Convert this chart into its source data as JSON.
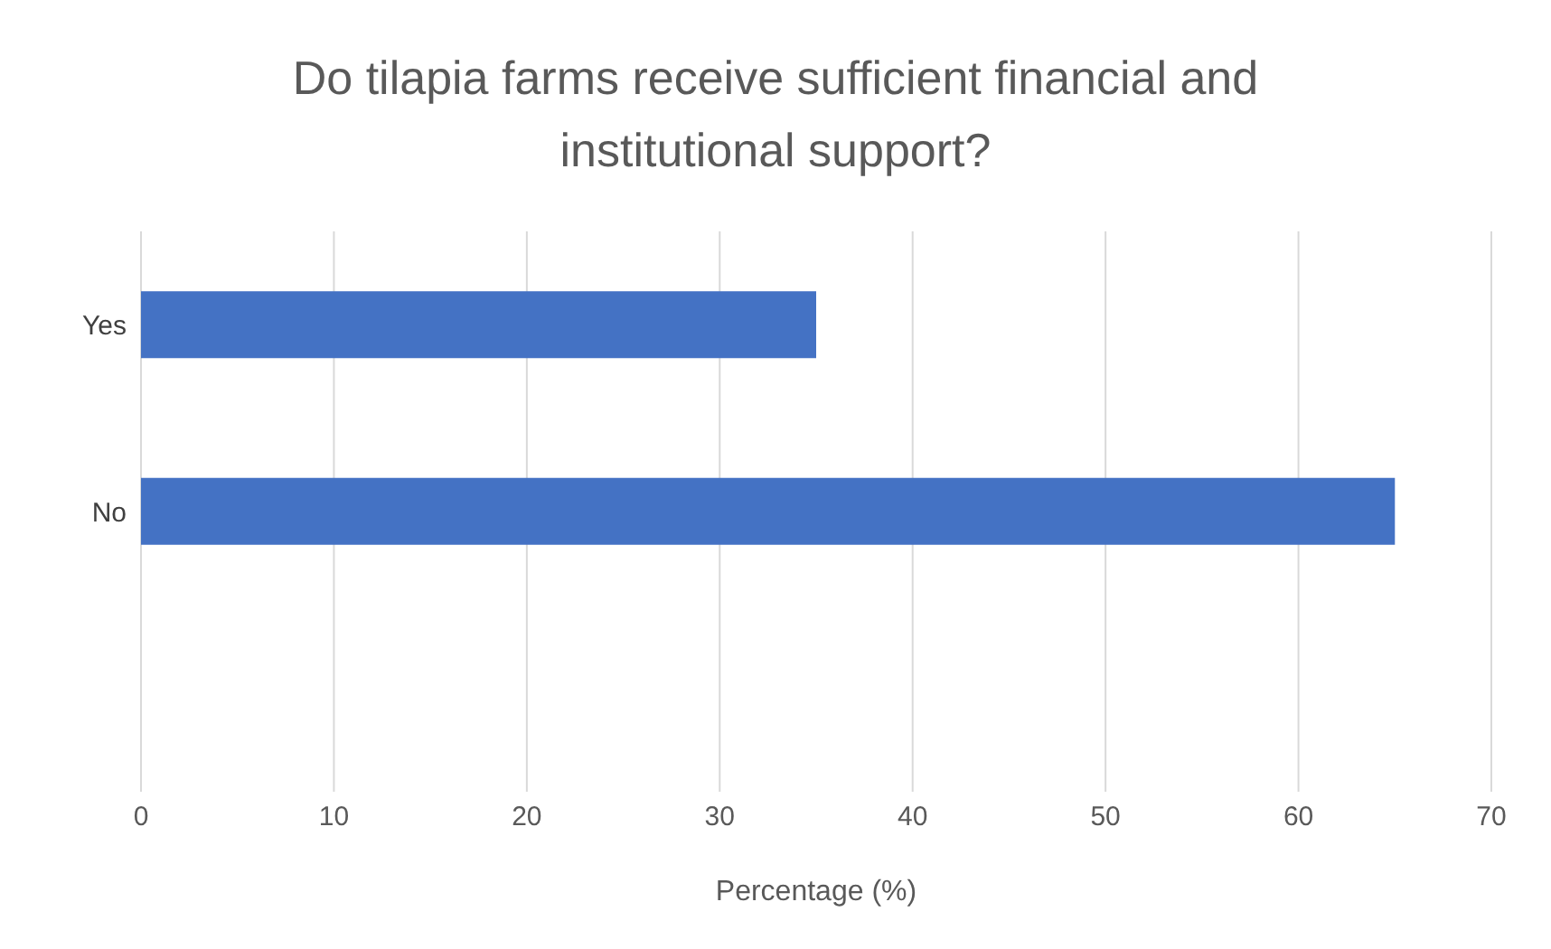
{
  "chart_data": {
    "type": "bar",
    "orientation": "horizontal",
    "title": "Do tilapia farms receive sufficient financial and institutional support?",
    "xlabel": "Percentage (%)",
    "categories": [
      "Yes",
      "No",
      null
    ],
    "values": [
      35,
      65,
      null
    ],
    "color": "#4472c4",
    "xlim": [
      0,
      70
    ],
    "xticks": [
      0,
      10,
      20,
      30,
      40,
      50,
      60,
      70
    ],
    "grid": "x"
  }
}
